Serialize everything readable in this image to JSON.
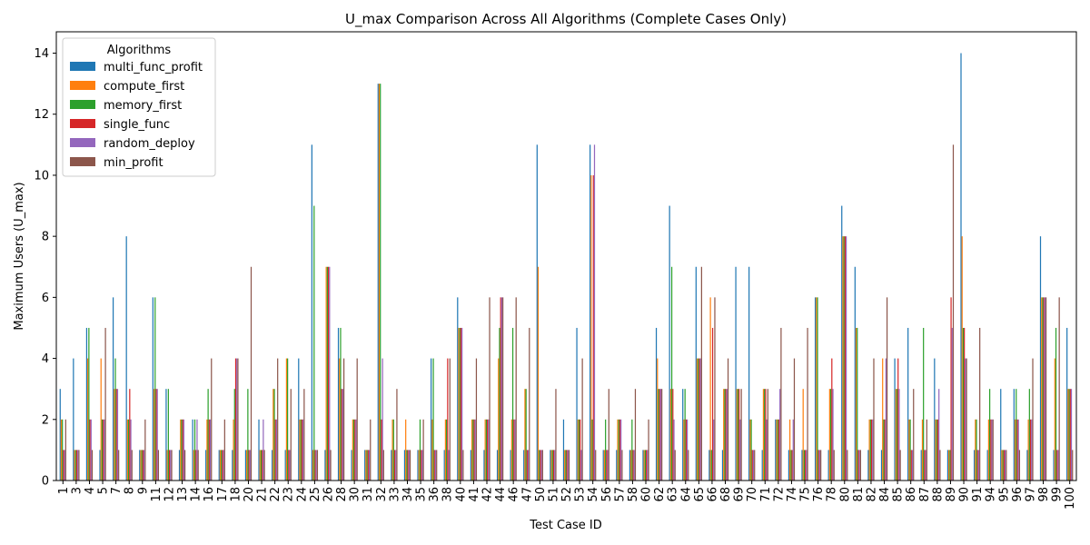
{
  "chart_data": {
    "type": "bar",
    "title": "U_max Comparison Across All Algorithms (Complete Cases Only)",
    "xlabel": "Test Case ID",
    "ylabel": "Maximum Users (U_max)",
    "ylim": [
      0,
      14.7
    ],
    "yticks": [
      0,
      2,
      4,
      6,
      8,
      10,
      12,
      14
    ],
    "grid": false,
    "legend_title": "Algorithms",
    "legend_position": "top-left",
    "categories": [
      "1",
      "3",
      "4",
      "5",
      "7",
      "8",
      "9",
      "11",
      "12",
      "13",
      "14",
      "16",
      "17",
      "18",
      "20",
      "21",
      "22",
      "23",
      "24",
      "25",
      "26",
      "28",
      "30",
      "31",
      "32",
      "33",
      "34",
      "35",
      "36",
      "38",
      "40",
      "41",
      "42",
      "44",
      "46",
      "47",
      "50",
      "51",
      "52",
      "53",
      "54",
      "56",
      "57",
      "58",
      "60",
      "62",
      "63",
      "64",
      "65",
      "66",
      "68",
      "69",
      "70",
      "71",
      "72",
      "74",
      "75",
      "76",
      "78",
      "80",
      "81",
      "82",
      "84",
      "85",
      "86",
      "87",
      "88",
      "89",
      "90",
      "91",
      "94",
      "95",
      "96",
      "97",
      "98",
      "99",
      "100"
    ],
    "series": [
      {
        "name": "multi_func_profit",
        "color": "#1f77b4",
        "values": [
          3,
          4,
          5,
          1,
          6,
          8,
          1,
          6,
          3,
          1,
          2,
          1,
          1,
          1,
          1,
          2,
          1,
          1,
          4,
          11,
          1,
          5,
          1,
          1,
          13,
          1,
          1,
          1,
          4,
          1,
          6,
          1,
          1,
          1,
          1,
          1,
          11,
          1,
          2,
          5,
          11,
          1,
          1,
          1,
          1,
          5,
          9,
          3,
          7,
          1,
          1,
          7,
          7,
          1,
          2,
          1,
          1,
          6,
          1,
          9,
          7,
          1,
          1,
          4,
          5,
          1,
          4,
          1,
          14,
          1,
          1,
          3,
          3,
          1,
          8,
          1,
          5
        ]
      },
      {
        "name": "compute_first",
        "color": "#ff7f0e",
        "values": [
          2,
          1,
          4,
          4,
          3,
          2,
          1,
          3,
          1,
          2,
          1,
          2,
          1,
          2,
          1,
          1,
          3,
          4,
          2,
          1,
          7,
          4,
          2,
          1,
          13,
          2,
          2,
          1,
          2,
          2,
          5,
          2,
          2,
          4,
          2,
          3,
          7,
          1,
          1,
          2,
          10,
          1,
          2,
          1,
          1,
          4,
          3,
          2,
          4,
          6,
          3,
          3,
          2,
          3,
          2,
          2,
          3,
          6,
          3,
          8,
          5,
          2,
          4,
          3,
          2,
          2,
          2,
          1,
          8,
          2,
          2,
          1,
          2,
          2,
          6,
          4,
          3
        ]
      },
      {
        "name": "memory_first",
        "color": "#2ca02c",
        "values": [
          2,
          1,
          5,
          2,
          4,
          2,
          1,
          6,
          3,
          2,
          2,
          3,
          1,
          3,
          3,
          1,
          3,
          4,
          2,
          9,
          7,
          5,
          2,
          1,
          13,
          2,
          1,
          2,
          4,
          2,
          5,
          2,
          2,
          5,
          5,
          3,
          1,
          1,
          1,
          2,
          2,
          2,
          2,
          2,
          1,
          3,
          7,
          3,
          4,
          1,
          3,
          3,
          2,
          3,
          2,
          1,
          1,
          6,
          3,
          8,
          5,
          2,
          2,
          3,
          2,
          5,
          2,
          1,
          5,
          2,
          3,
          1,
          3,
          3,
          6,
          5,
          3
        ]
      },
      {
        "name": "single_func",
        "color": "#d62728",
        "values": [
          1,
          1,
          2,
          2,
          3,
          3,
          1,
          3,
          1,
          2,
          1,
          2,
          1,
          4,
          1,
          1,
          2,
          1,
          2,
          1,
          7,
          3,
          2,
          1,
          2,
          1,
          1,
          1,
          1,
          4,
          5,
          2,
          2,
          6,
          2,
          1,
          1,
          1,
          1,
          2,
          10,
          1,
          2,
          1,
          1,
          3,
          3,
          2,
          4,
          5,
          3,
          3,
          1,
          3,
          2,
          1,
          1,
          1,
          4,
          8,
          1,
          2,
          2,
          4,
          1,
          1,
          2,
          6,
          5,
          1,
          2,
          1,
          2,
          2,
          6,
          1,
          3
        ]
      },
      {
        "name": "random_deploy",
        "color": "#9467bd",
        "values": [
          1,
          1,
          2,
          2,
          3,
          2,
          1,
          3,
          1,
          2,
          2,
          2,
          1,
          4,
          1,
          2,
          2,
          1,
          2,
          1,
          7,
          3,
          2,
          1,
          4,
          1,
          1,
          1,
          1,
          1,
          5,
          2,
          2,
          6,
          2,
          1,
          1,
          1,
          1,
          1,
          11,
          1,
          2,
          1,
          1,
          3,
          2,
          2,
          4,
          2,
          3,
          2,
          1,
          2,
          3,
          2,
          1,
          1,
          3,
          8,
          1,
          2,
          4,
          3,
          1,
          1,
          3,
          5,
          4,
          1,
          2,
          1,
          2,
          2,
          6,
          1,
          3
        ]
      },
      {
        "name": "min_profit",
        "color": "#8c564b",
        "values": [
          2,
          1,
          1,
          5,
          1,
          1,
          2,
          1,
          1,
          1,
          1,
          4,
          2,
          4,
          7,
          1,
          4,
          3,
          3,
          1,
          1,
          4,
          4,
          2,
          1,
          3,
          1,
          2,
          1,
          4,
          1,
          4,
          6,
          6,
          6,
          5,
          1,
          3,
          1,
          4,
          1,
          3,
          1,
          3,
          2,
          3,
          1,
          1,
          7,
          6,
          4,
          3,
          1,
          3,
          5,
          4,
          5,
          1,
          1,
          1,
          1,
          4,
          6,
          1,
          3,
          2,
          1,
          11,
          4,
          5,
          2,
          1,
          1,
          4,
          6,
          6,
          1
        ]
      }
    ]
  }
}
